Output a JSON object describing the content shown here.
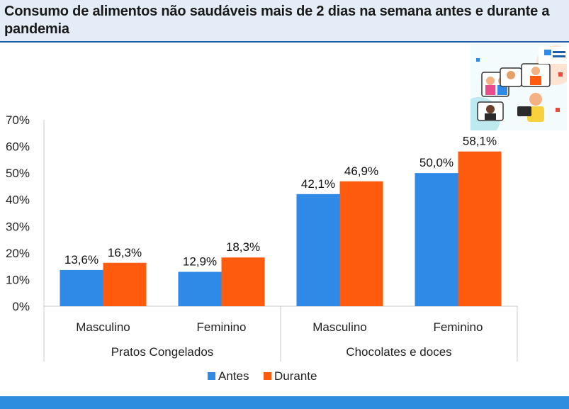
{
  "title": "Consumo de alimentos não saudáveis mais de 2 dias na semana antes e durante a pandemia",
  "colors": {
    "antes": "#2e8ae6",
    "durante": "#ff5b0f",
    "accent": "#1f5fa8",
    "bottom_band": "#2f8de0"
  },
  "chart_data": {
    "type": "bar",
    "yticks": [
      "0%",
      "10%",
      "20%",
      "30%",
      "40%",
      "50%",
      "60%",
      "70%"
    ],
    "ylim": [
      0,
      70
    ],
    "groups": [
      {
        "name": "Pratos Congelados",
        "categories": [
          "Masculino",
          "Feminino"
        ]
      },
      {
        "name": "Chocolates e doces",
        "categories": [
          "Masculino",
          "Feminino"
        ]
      }
    ],
    "series": [
      {
        "name": "Antes",
        "values": [
          13.6,
          12.9,
          42.1,
          50.0
        ],
        "labels": [
          "13,6%",
          "12,9%",
          "42,1%",
          "50,0%"
        ]
      },
      {
        "name": "Durante",
        "values": [
          16.3,
          18.3,
          46.9,
          58.1
        ],
        "labels": [
          "16,3%",
          "18,3%",
          "46,9%",
          "58,1%"
        ]
      }
    ],
    "legend_position": "bottom",
    "grid": false
  }
}
